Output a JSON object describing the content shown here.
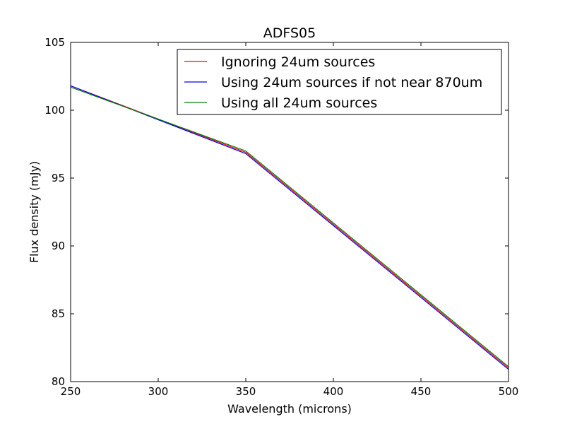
{
  "chart_data": {
    "type": "line",
    "title": "ADFS05",
    "xlabel": "Wavelength (microns)",
    "ylabel": "Flux density (mJy)",
    "xlim": [
      250,
      500
    ],
    "ylim": [
      80,
      105
    ],
    "xticks": [
      250,
      300,
      350,
      400,
      450,
      500
    ],
    "yticks": [
      80,
      85,
      90,
      95,
      100,
      105
    ],
    "grid": false,
    "legend_position": "top-right",
    "x": [
      250,
      350,
      500
    ],
    "series": [
      {
        "name": "Ignoring 24um sources",
        "color": "#ff0000",
        "values": [
          101.8,
          96.9,
          81.0
        ]
      },
      {
        "name": "Using 24um sources if not near 870um",
        "color": "#0000ff",
        "values": [
          101.8,
          96.8,
          80.9
        ]
      },
      {
        "name": "Using all 24um sources",
        "color": "#008000",
        "values": [
          101.7,
          97.0,
          81.1
        ]
      }
    ]
  }
}
